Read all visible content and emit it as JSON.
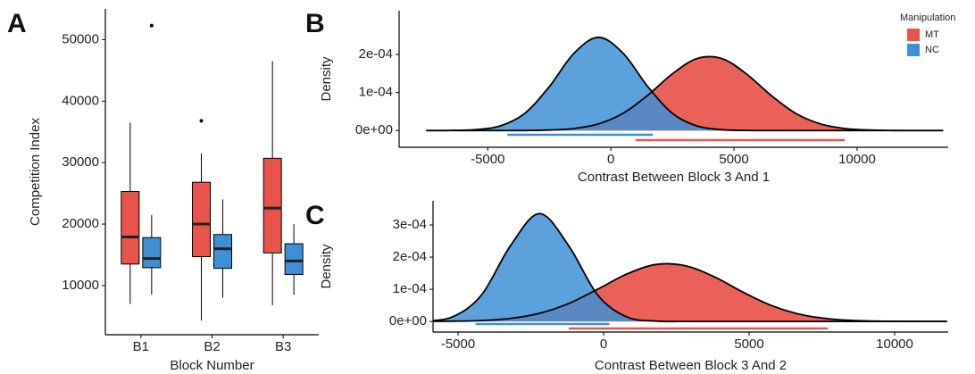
{
  "chart_data": [
    {
      "type": "box",
      "panel_label": "A",
      "x_label": "Block Number",
      "y_label": "Competition Index",
      "categories": [
        "B1",
        "B2",
        "B3"
      ],
      "ylim": [
        2000,
        55000
      ],
      "yticks": [
        10000,
        20000,
        30000,
        40000,
        50000
      ],
      "series": [
        {
          "color": "#e8544b",
          "min": [
            7000,
            4300,
            6800
          ],
          "q1": [
            13500,
            14700,
            15300
          ],
          "median": [
            17900,
            20000,
            22600
          ],
          "q3": [
            25300,
            26800,
            30700
          ],
          "max": [
            36500,
            31500,
            46500
          ],
          "outliers": [
            [],
            [
              36800
            ],
            []
          ]
        },
        {
          "color": "#3f8fd6",
          "min": [
            8500,
            8000,
            8500
          ],
          "q1": [
            12900,
            12800,
            11800
          ],
          "median": [
            14400,
            16000,
            14000
          ],
          "q3": [
            17800,
            18300,
            16800
          ],
          "max": [
            21500,
            24000,
            20000
          ],
          "outliers": [
            [
              52300
            ],
            [],
            []
          ]
        }
      ]
    },
    {
      "type": "density",
      "panel_label": "B",
      "x_label": "Contrast Between Block 3 And 1",
      "y_label": "Density",
      "legend": "top-right",
      "legend_title": "Manipulation",
      "xlim": [
        -8600,
        13700
      ],
      "xticks": [
        -5000,
        0,
        5000,
        10000
      ],
      "ylim": [
        -4.4e-05,
        0.000315
      ],
      "yticks": [
        {
          "value": 0,
          "label": "0e+00"
        },
        {
          "value": 0.0001,
          "label": "1e-04"
        },
        {
          "value": 0.0002,
          "label": "2e-04"
        }
      ],
      "x": [
        -7500,
        -6500,
        -5500,
        -4500,
        -3500,
        -2500,
        -1500,
        -500,
        500,
        1500,
        2500,
        3500,
        4500,
        5500,
        6500,
        7500,
        8500,
        9500,
        10500,
        11500,
        12500,
        13500
      ],
      "series": [
        {
          "name": "MT",
          "color": "#e8544b",
          "interval": [
            1000,
            9500
          ],
          "values": [
            0,
            0,
            0,
            0,
            2e-07,
            1.3e-06,
            5.3e-06,
            1.75e-05,
            4.54e-05,
            9.27e-05,
            0.0001492,
            0.0001893,
            0.0001893,
            0.0001492,
            9.27e-05,
            4.54e-05,
            1.75e-05,
            5.3e-06,
            1.3e-06,
            2e-07,
            0,
            0
          ]
        },
        {
          "name": "NC",
          "color": "#3f8fd6",
          "interval": [
            -4200,
            1700
          ],
          "values": [
            0,
            3e-07,
            2.2e-06,
            1.2e-05,
            4.5e-05,
            0.0001154,
            0.000203,
            0.000245,
            0.000203,
            0.0001154,
            4.5e-05,
            1.2e-05,
            2.2e-06,
            3e-07,
            0,
            0,
            0,
            0,
            0,
            0,
            0,
            0
          ]
        }
      ]
    },
    {
      "type": "density",
      "panel_label": "C",
      "x_label": "Contrast Between Block 3 And 2",
      "y_label": "Density",
      "xlim": [
        -5860,
        11840
      ],
      "xticks": [
        -5000,
        0,
        5000,
        10000
      ],
      "ylim": [
        -3.3e-05,
        0.000375
      ],
      "yticks": [
        {
          "value": 0,
          "label": "0e+00"
        },
        {
          "value": 0.0001,
          "label": "1e-04"
        },
        {
          "value": 0.0002,
          "label": "2e-04"
        },
        {
          "value": 0.0003,
          "label": "3e-04"
        }
      ],
      "x": [
        -6200,
        -5200,
        -4200,
        -3200,
        -2200,
        -1200,
        -200,
        800,
        1800,
        2800,
        3800,
        4800,
        5800,
        6800,
        7800,
        8800,
        9800,
        10800,
        11800
      ],
      "series": [
        {
          "color": "#e8544b",
          "interval": [
            -1200,
            7700
          ],
          "values": [
            1e-07,
            7e-07,
            2.8e-06,
            9.3e-06,
            2.54e-05,
            5.57e-05,
            0.0001004,
            0.0001476,
            0.0001771,
            0.0001735,
            0.0001388,
            9.06e-05,
            4.83e-05,
            2.1e-05,
            7.5e-06,
            2.2e-06,
            5e-07,
            1e-07,
            0
          ]
        },
        {
          "color": "#3f8fd6",
          "interval": [
            -4400,
            200
          ],
          "values": [
            1.2e-06,
            1.39e-05,
            8.16e-05,
            0.0002354,
            0.000335,
            0.0002354,
            8.16e-05,
            1.39e-05,
            1.2e-06,
            0,
            0,
            0,
            0,
            0,
            0,
            0,
            0,
            0,
            0
          ]
        }
      ]
    }
  ]
}
